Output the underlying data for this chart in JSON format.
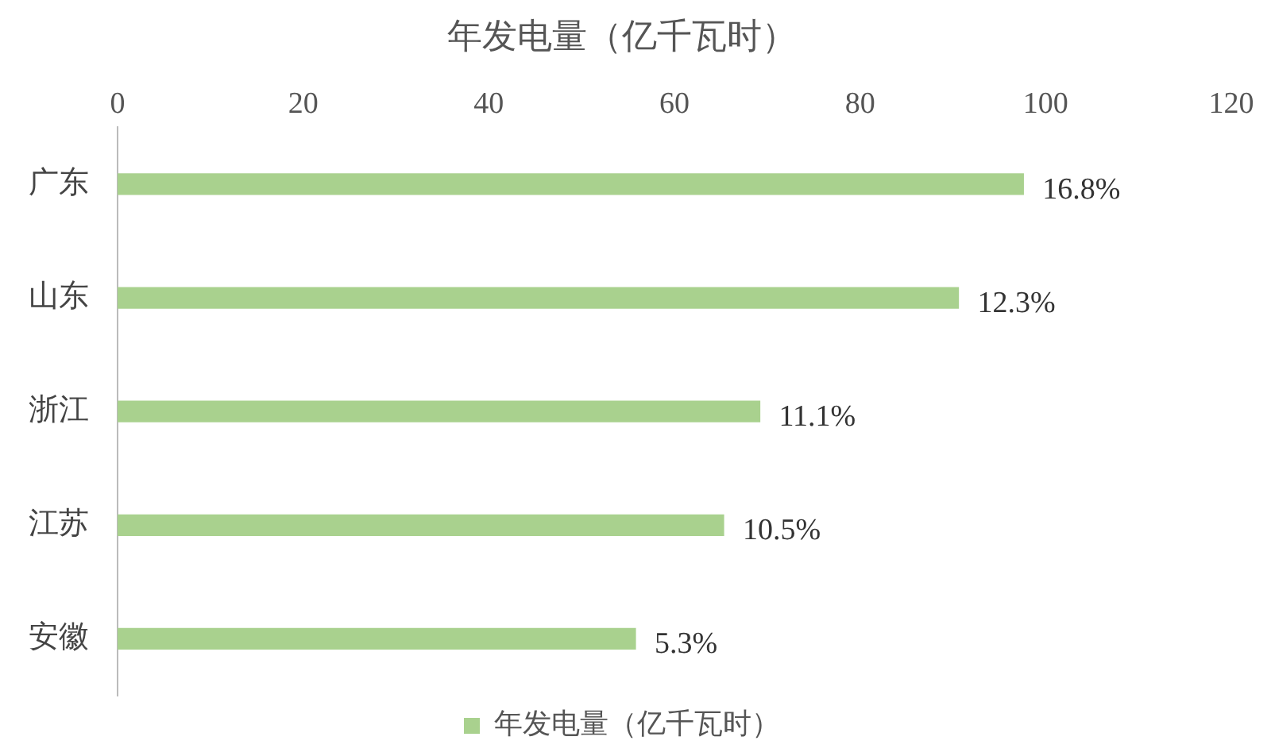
{
  "chart_data": {
    "type": "bar",
    "orientation": "horizontal",
    "title": "年发电量（亿千瓦时）",
    "categories": [
      "广东",
      "山东",
      "浙江",
      "江苏",
      "安徽"
    ],
    "series": [
      {
        "name": "年发电量（亿千瓦时）",
        "color": "#a9d18e",
        "values": [
          97.6,
          90.6,
          69.2,
          65.3,
          55.8
        ]
      }
    ],
    "annotations": [
      {
        "text": "16.8%",
        "x": 97.6,
        "y": "广东"
      },
      {
        "text": "12.3%",
        "x": 90.6,
        "y": "山东"
      },
      {
        "text": "11.1%",
        "x": 69.2,
        "y": "浙江"
      },
      {
        "text": "10.5%",
        "x": 65.3,
        "y": "江苏"
      },
      {
        "text": "5.3%",
        "x": 55.8,
        "y": "安徽"
      }
    ],
    "xlim": [
      0,
      120
    ],
    "xticks": [
      0,
      20,
      40,
      60,
      80,
      100,
      120
    ],
    "grid": false,
    "legend": "bottom"
  }
}
